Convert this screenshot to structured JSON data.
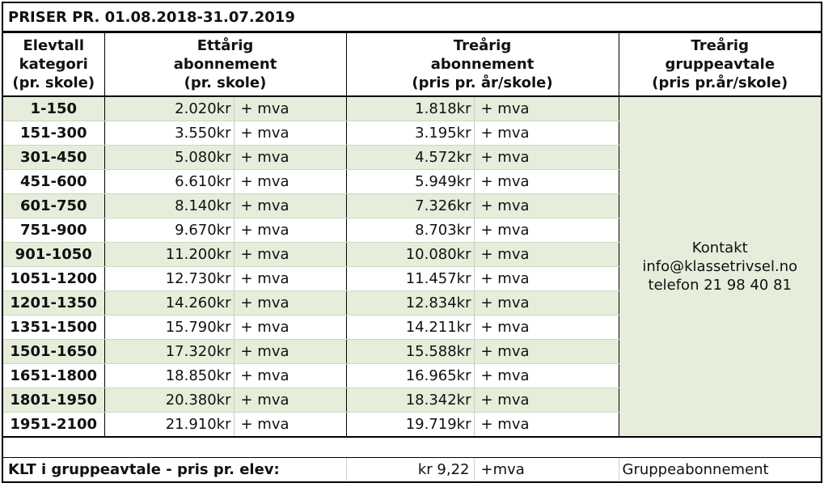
{
  "title": "PRISER PR. 01.08.2018-31.07.2019",
  "headers": {
    "category": [
      "Elevtall",
      "kategori",
      "(pr. skole)"
    ],
    "one_year": [
      "Ettårig",
      "abonnement",
      "(pr. skole)"
    ],
    "three_year": [
      "Treårig",
      "abonnement",
      "(pris pr. år/skole)"
    ],
    "three_year_group": [
      "Treårig",
      "gruppeavtale",
      "(pris pr.år/skole)"
    ]
  },
  "rows": [
    {
      "cat": "1-150",
      "one": "2.020kr",
      "one_mva": "+ mva",
      "three": "1.818kr",
      "three_mva": "+ mva"
    },
    {
      "cat": "151-300",
      "one": "3.550kr",
      "one_mva": "+ mva",
      "three": "3.195kr",
      "three_mva": " + mva"
    },
    {
      "cat": "301-450",
      "one": "5.080kr",
      "one_mva": "+ mva",
      "three": "4.572kr",
      "three_mva": "+ mva"
    },
    {
      "cat": "451-600",
      "one": "6.610kr",
      "one_mva": "+ mva",
      "three": "5.949kr",
      "three_mva": "+ mva"
    },
    {
      "cat": "601-750",
      "one": "8.140kr",
      "one_mva": "+ mva",
      "three": "7.326kr",
      "three_mva": "+ mva"
    },
    {
      "cat": "751-900",
      "one": "9.670kr",
      "one_mva": "+ mva",
      "three": "8.703kr",
      "three_mva": "+ mva"
    },
    {
      "cat": "901-1050",
      "one": "11.200kr",
      "one_mva": "+ mva",
      "three": "10.080kr",
      "three_mva": "+ mva"
    },
    {
      "cat": "1051-1200",
      "one": "12.730kr",
      "one_mva": "+ mva",
      "three": "11.457kr",
      "three_mva": "+ mva"
    },
    {
      "cat": "1201-1350",
      "one": "14.260kr",
      "one_mva": "+ mva",
      "three": "12.834kr",
      "three_mva": "+ mva"
    },
    {
      "cat": "1351-1500",
      "one": "15.790kr",
      "one_mva": "+ mva",
      "three": "14.211kr",
      "three_mva": "+ mva"
    },
    {
      "cat": "1501-1650",
      "one": "17.320kr",
      "one_mva": "+ mva",
      "three": "15.588kr",
      "three_mva": "+ mva"
    },
    {
      "cat": "1651-1800",
      "one": "18.850kr",
      "one_mva": "+ mva",
      "three": "16.965kr",
      "three_mva": "+ mva"
    },
    {
      "cat": "1801-1950",
      "one": "20.380kr",
      "one_mva": "+ mva",
      "three": "18.342kr",
      "three_mva": "+ mva"
    },
    {
      "cat": "1951-2100",
      "one": "21.910kr",
      "one_mva": "+ mva",
      "three": "19.719kr",
      "three_mva": "+ mva"
    }
  ],
  "contact": [
    "Kontakt",
    "info@klassetrivsel.no",
    "telefon 21 98 40 81"
  ],
  "footer": {
    "label": "KLT i gruppeavtale - pris pr. elev:",
    "value": "kr 9,22",
    "mva": "+mva",
    "group": "Gruppeabonnement"
  },
  "colors": {
    "green_fill": "#e6eedb",
    "border": "#000000"
  }
}
